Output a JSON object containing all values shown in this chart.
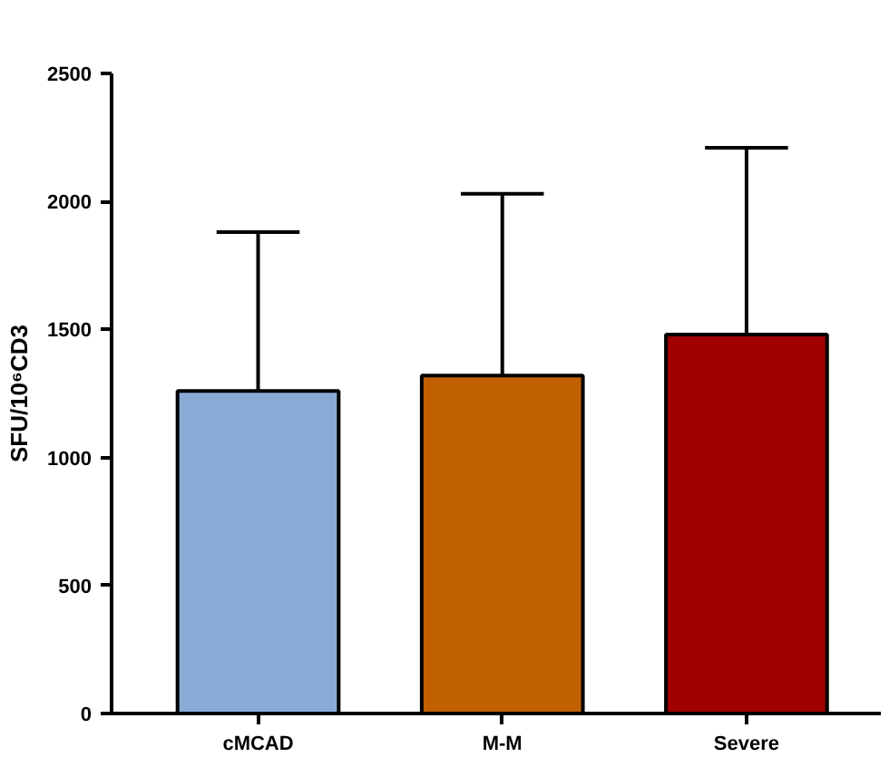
{
  "chart_data": {
    "type": "bar",
    "ylabel": "SFU/10⁶CD3",
    "categories": [
      "cMCAD",
      "M-M",
      "Severe"
    ],
    "values": [
      1260,
      1320,
      1480
    ],
    "colors": [
      "#8aaad6",
      "#c06000",
      "#a00000"
    ],
    "errors": [
      [
        1260,
        1880
      ],
      [
        1320,
        2030
      ],
      [
        1480,
        2210
      ]
    ],
    "ylim": [
      0,
      2500
    ],
    "yticks": [
      0,
      500,
      1000,
      1500,
      2000,
      2500
    ],
    "grid": false
  }
}
